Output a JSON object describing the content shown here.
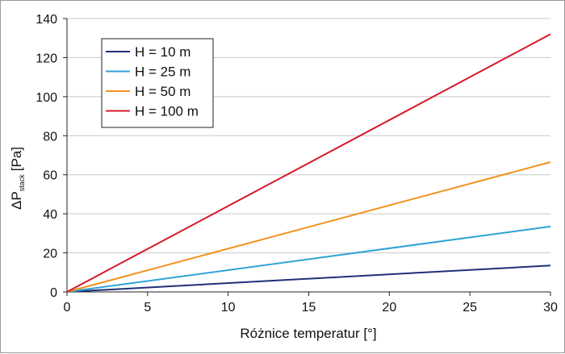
{
  "chart_data": {
    "type": "line",
    "title": "",
    "xlabel": "Różnice temperatur [°]",
    "ylabel": {
      "prefix": "ΔP",
      "subscript": "stack",
      "suffix": "[Pa]"
    },
    "xlim": [
      0,
      30
    ],
    "ylim": [
      0,
      140
    ],
    "xticks": [
      0,
      5,
      10,
      15,
      20,
      25,
      30
    ],
    "yticks": [
      0,
      20,
      40,
      60,
      80,
      100,
      120,
      140
    ],
    "grid": "horizontal",
    "legend_position": "top-left",
    "series": [
      {
        "name": "H = 10 m",
        "color": "#1f2f7a",
        "x": [
          0,
          30
        ],
        "y": [
          0,
          13.5
        ]
      },
      {
        "name": "H = 25 m",
        "color": "#2ea3d6",
        "x": [
          0,
          30
        ],
        "y": [
          0,
          33.5
        ]
      },
      {
        "name": "H = 50 m",
        "color": "#f0921e",
        "x": [
          0,
          30
        ],
        "y": [
          0,
          66.5
        ]
      },
      {
        "name": "H = 100 m",
        "color": "#d7182a",
        "x": [
          0,
          30
        ],
        "y": [
          0,
          132
        ]
      }
    ]
  }
}
